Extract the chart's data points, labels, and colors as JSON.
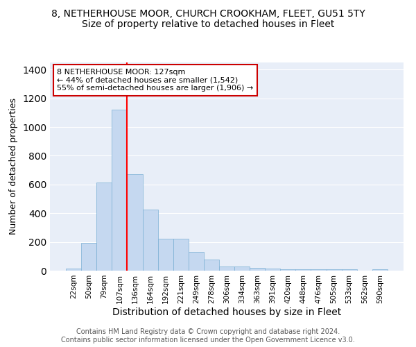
{
  "title_line1": "8, NETHERHOUSE MOOR, CHURCH CROOKHAM, FLEET, GU51 5TY",
  "title_line2": "Size of property relative to detached houses in Fleet",
  "xlabel": "Distribution of detached houses by size in Fleet",
  "ylabel": "Number of detached properties",
  "bar_labels": [
    "22sqm",
    "50sqm",
    "79sqm",
    "107sqm",
    "136sqm",
    "164sqm",
    "192sqm",
    "221sqm",
    "249sqm",
    "278sqm",
    "306sqm",
    "334sqm",
    "363sqm",
    "391sqm",
    "420sqm",
    "448sqm",
    "476sqm",
    "505sqm",
    "533sqm",
    "562sqm",
    "590sqm"
  ],
  "bar_values": [
    15,
    193,
    613,
    1120,
    670,
    425,
    220,
    220,
    130,
    75,
    28,
    28,
    20,
    15,
    10,
    10,
    8,
    8,
    8,
    0,
    8
  ],
  "bar_color": "#c5d8f0",
  "bar_edge_color": "#7aafd4",
  "background_color": "#e8eef8",
  "grid_color": "#ffffff",
  "annotation_text": "8 NETHERHOUSE MOOR: 127sqm\n← 44% of detached houses are smaller (1,542)\n55% of semi-detached houses are larger (1,906) →",
  "annotation_box_color": "#ffffff",
  "annotation_box_edge": "#cc0000",
  "red_line_index": 3.5,
  "ylim": [
    0,
    1450
  ],
  "footer_text": "Contains HM Land Registry data © Crown copyright and database right 2024.\nContains public sector information licensed under the Open Government Licence v3.0.",
  "title_fontsize": 10,
  "subtitle_fontsize": 10,
  "ylabel_fontsize": 9,
  "xlabel_fontsize": 10,
  "tick_fontsize": 7.5,
  "footer_fontsize": 7,
  "annot_fontsize": 8
}
